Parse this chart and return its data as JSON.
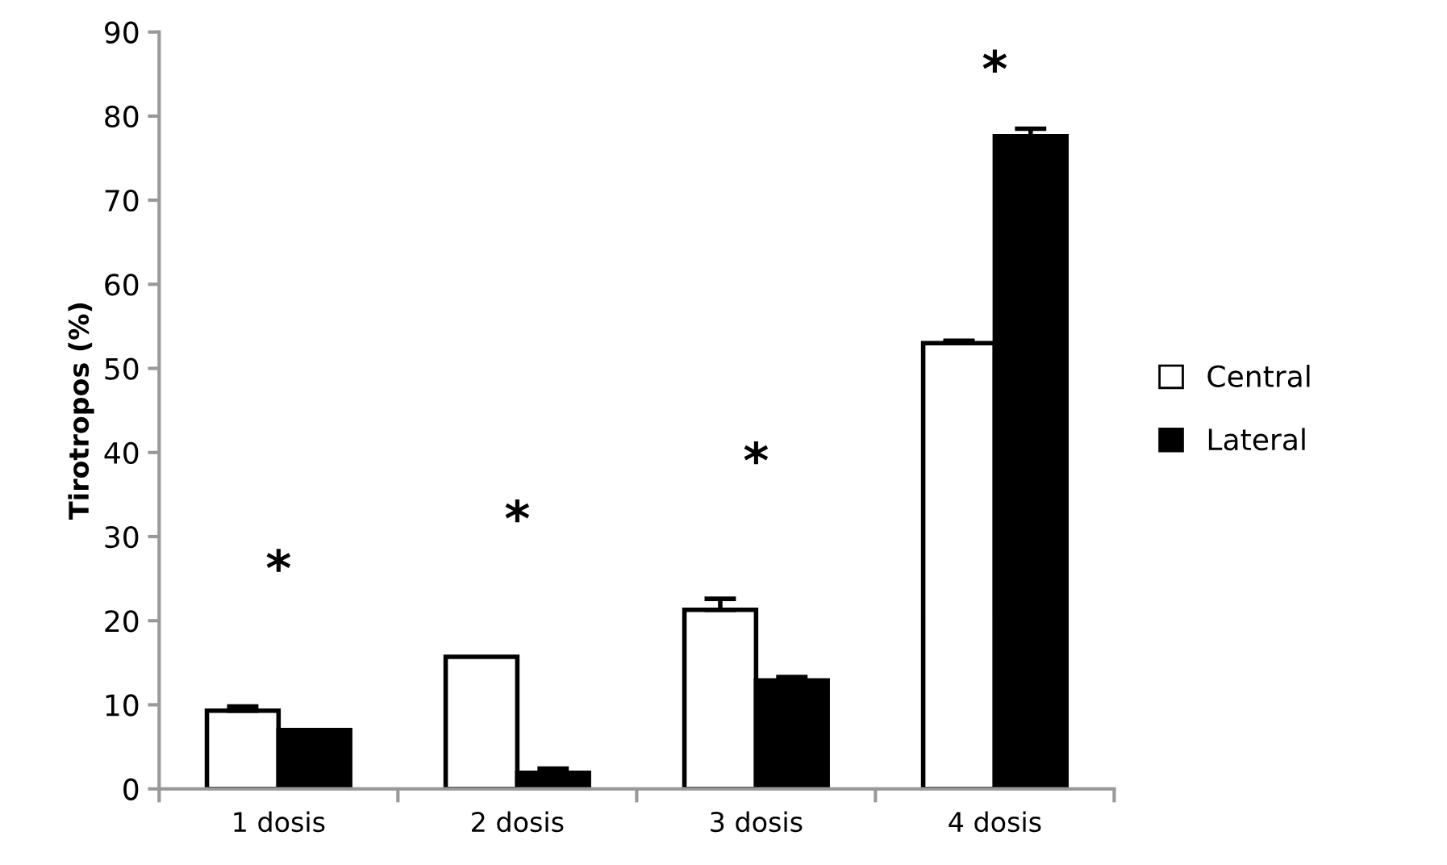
{
  "chart_data": {
    "type": "bar",
    "ylabel": "Tirotropos (%)",
    "categories": [
      "1 dosis",
      "2 dosis",
      "3 dosis",
      "4 dosis"
    ],
    "series": [
      {
        "name": "Central",
        "color": "#ffffff",
        "values": [
          9.3,
          15.7,
          21.3,
          53.0
        ],
        "errors": [
          0.5,
          null,
          1.3,
          0.3
        ]
      },
      {
        "name": "Lateral",
        "color": "#000000",
        "values": [
          7.0,
          1.9,
          12.9,
          77.6
        ],
        "errors": [
          null,
          0.5,
          0.4,
          0.9
        ]
      }
    ],
    "ylim": [
      0,
      90
    ],
    "yticks": [
      0,
      10,
      20,
      30,
      40,
      50,
      60,
      70,
      80,
      90
    ],
    "grid": false,
    "legend": "right",
    "annotations": [
      "*",
      "*",
      "*",
      "*"
    ]
  }
}
